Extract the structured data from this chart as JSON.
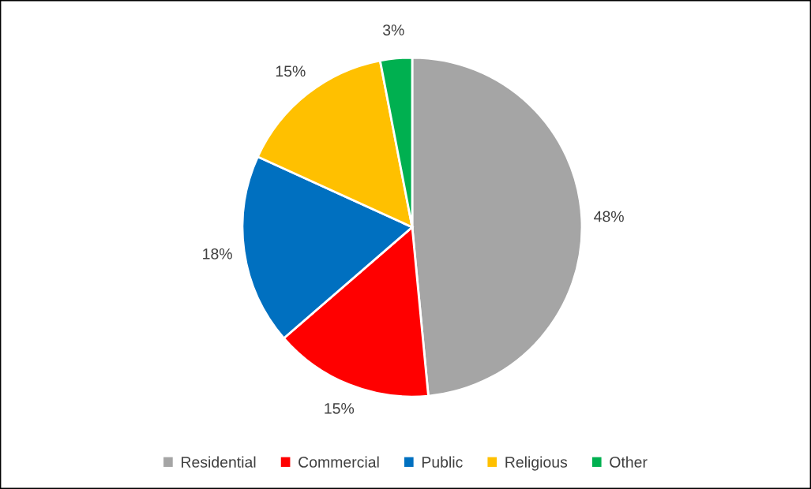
{
  "chart_data": {
    "type": "pie",
    "categories": [
      "Residential",
      "Commercial",
      "Public",
      "Religious",
      "Other"
    ],
    "values": [
      48,
      15,
      18,
      15,
      3
    ],
    "colors": [
      "#a5a5a5",
      "#ff0000",
      "#0070c0",
      "#ffc000",
      "#00b050"
    ],
    "value_labels": [
      "48%",
      "15%",
      "18%",
      "15%",
      "3%"
    ],
    "legend": "bottom"
  }
}
